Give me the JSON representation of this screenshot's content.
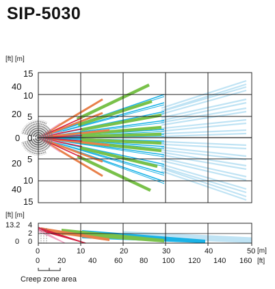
{
  "title": "SIP-5030",
  "top_view": {
    "units_label": "[ft] [m]",
    "m_ticks": [
      "15",
      "10",
      "5",
      "0",
      "5",
      "10",
      "15"
    ],
    "ft_ticks": [
      "40",
      "20",
      "0",
      "20",
      "40"
    ]
  },
  "side_view": {
    "units_label": "[ft] [m]",
    "ft_height": "13.2",
    "m_ticks": [
      "4",
      "2",
      "0"
    ],
    "ft_bottom": "0",
    "x_m": [
      "0",
      "10",
      "20",
      "30",
      "40",
      "50"
    ],
    "x_ft": [
      "0",
      "20",
      "40",
      "60",
      "80",
      "100",
      "120",
      "140",
      "160"
    ],
    "x_unit_m": "[m]",
    "x_unit_ft": "[ft]"
  },
  "creep_zone_label": "Creep zone area",
  "colors": {
    "creep": "#7a7a7a",
    "pink": "#f0a0c0",
    "red": "#d62040",
    "orange": "#e8804a",
    "blue": "#1ab2e6",
    "green": "#79c14a",
    "lightblue": "#bfe3f4",
    "grid": "#222222"
  }
}
